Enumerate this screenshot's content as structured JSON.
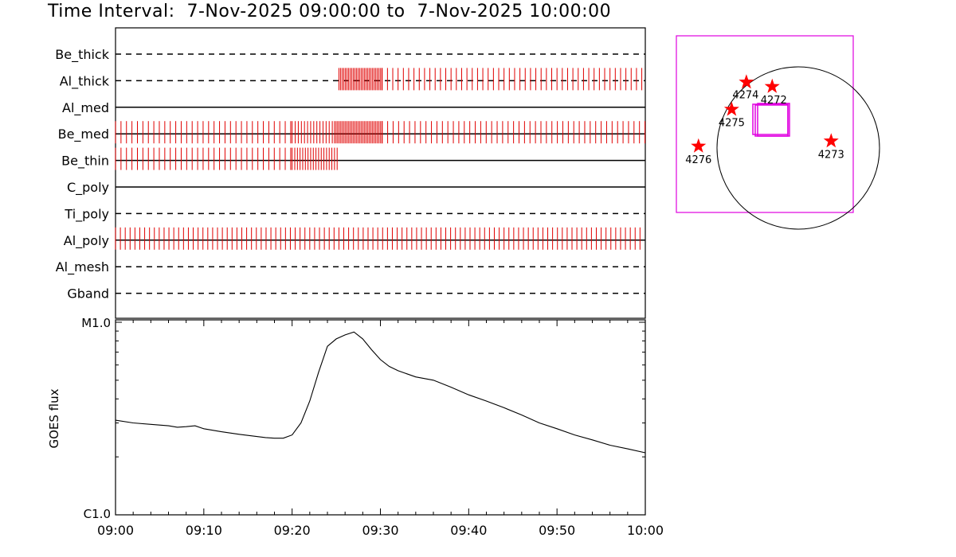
{
  "title": "Time Interval:  7-Nov-2025 09:00:00 to  7-Nov-2025 10:00:00",
  "colors": {
    "event": "#e00000",
    "fov": "#e000e0",
    "star": "#ff0000"
  },
  "chart_data": [
    {
      "type": "timeline",
      "x_range": [
        "09:00",
        "10:00"
      ],
      "channels": [
        {
          "name": "Be_thick",
          "style": "dashed",
          "events": []
        },
        {
          "name": "Al_thick",
          "style": "dashed",
          "events": [
            {
              "from": 25.3,
              "to": 30.2,
              "spacing": 0.18
            },
            {
              "from": 30.2,
              "to": 59.9,
              "spacing": 0.6
            }
          ]
        },
        {
          "name": "Al_med",
          "style": "solid",
          "events": []
        },
        {
          "name": "Be_med",
          "style": "solid",
          "events": [
            {
              "from": 0.0,
              "to": 20.0,
              "spacing": 0.62
            },
            {
              "from": 20.0,
              "to": 24.8,
              "spacing": 0.35
            },
            {
              "from": 24.8,
              "to": 30.2,
              "spacing": 0.18
            },
            {
              "from": 30.2,
              "to": 60.0,
              "spacing": 0.62
            }
          ]
        },
        {
          "name": "Be_thin",
          "style": "solid",
          "events": [
            {
              "from": 0.0,
              "to": 20.0,
              "spacing": 0.62
            },
            {
              "from": 20.0,
              "to": 25.2,
              "spacing": 0.3
            }
          ]
        },
        {
          "name": "C_poly",
          "style": "solid",
          "events": []
        },
        {
          "name": "Ti_poly",
          "style": "dashed",
          "events": []
        },
        {
          "name": "Al_poly",
          "style": "solid",
          "events": [
            {
              "from": 0.0,
              "to": 59.9,
              "spacing": 0.55
            }
          ]
        },
        {
          "name": "Al_mesh",
          "style": "dashed",
          "events": []
        },
        {
          "name": "Gband",
          "style": "dashed",
          "events": []
        }
      ]
    },
    {
      "type": "line",
      "ylabel": "GOES flux",
      "y_scale": "log",
      "ylim_labels": [
        "C1.0",
        "M1.0"
      ],
      "ylim": [
        1e-06,
        1e-05
      ],
      "x_ticks": [
        "09:00",
        "09:10",
        "09:20",
        "09:30",
        "09:40",
        "09:50",
        "10:00"
      ],
      "x": [
        0,
        2,
        4,
        6,
        7,
        8,
        9,
        10,
        12,
        14,
        16,
        17,
        18,
        19,
        20,
        21,
        22,
        23,
        24,
        25,
        26,
        27,
        28,
        29,
        30,
        31,
        32,
        33,
        34,
        36,
        38,
        40,
        42,
        44,
        46,
        48,
        50,
        52,
        54,
        56,
        58,
        60
      ],
      "values": [
        3.1e-06,
        3e-06,
        2.95e-06,
        2.9e-06,
        2.85e-06,
        2.87e-06,
        2.9e-06,
        2.8e-06,
        2.7e-06,
        2.62e-06,
        2.55e-06,
        2.52e-06,
        2.5e-06,
        2.5e-06,
        2.6e-06,
        3e-06,
        3.9e-06,
        5.5e-06,
        7.5e-06,
        8.2e-06,
        8.6e-06,
        8.9e-06,
        8.2e-06,
        7.2e-06,
        6.4e-06,
        5.9e-06,
        5.6e-06,
        5.4e-06,
        5.2e-06,
        5e-06,
        4.6e-06,
        4.2e-06,
        3.9e-06,
        3.6e-06,
        3.3e-06,
        3e-06,
        2.8e-06,
        2.6e-06,
        2.45e-06,
        2.3e-06,
        2.2e-06,
        2.1e-06
      ]
    },
    {
      "type": "scatter",
      "x_range": [
        -1200,
        1200
      ],
      "y_range": [
        -1200,
        1200
      ],
      "markers": [
        {
          "label": "4274",
          "x": -250,
          "y": 570
        },
        {
          "label": "4272",
          "x": 100,
          "y": 510
        },
        {
          "label": "4275",
          "x": -450,
          "y": 200
        },
        {
          "label": "4276",
          "x": -900,
          "y": -300
        },
        {
          "label": "4273",
          "x": 900,
          "y": -230
        }
      ]
    }
  ]
}
